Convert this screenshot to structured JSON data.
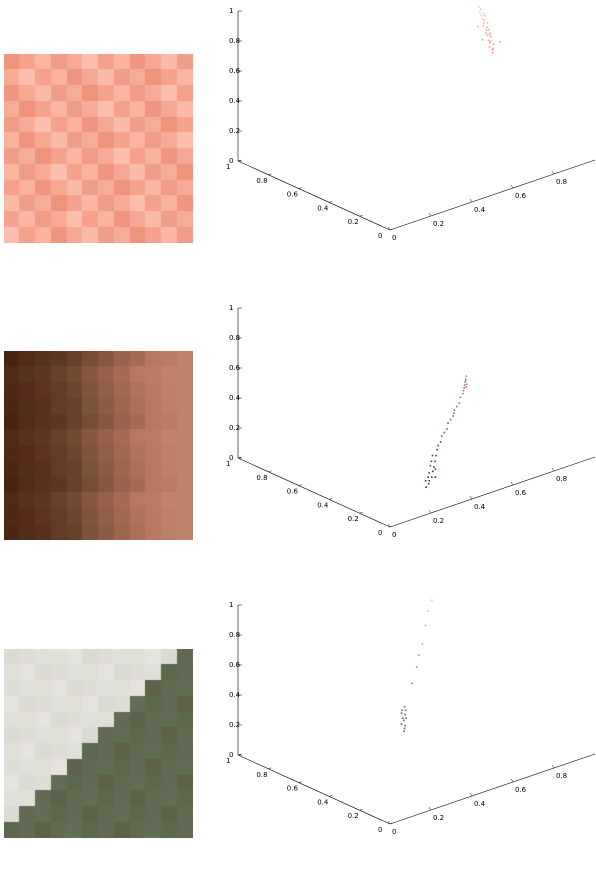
{
  "chart_data": [
    {
      "type": "scatter",
      "projection": "3d",
      "axes": {
        "x": {
          "range": [
            0,
            1
          ],
          "ticks": [
            "0",
            "0.2",
            "0.4",
            "0.6",
            "0.8"
          ]
        },
        "y": {
          "range": [
            0,
            1
          ],
          "ticks": [
            "0",
            "0.2",
            "0.4",
            "0.6",
            "0.8",
            "1"
          ]
        },
        "z": {
          "range": [
            0,
            1
          ],
          "ticks": [
            "0",
            "0.2",
            "0.4",
            "0.6",
            "0.8",
            "1"
          ]
        }
      },
      "grid": false,
      "point_color": "#e8937a",
      "points": [
        [
          0.93,
          0.58,
          0.48
        ],
        [
          0.93,
          0.58,
          0.5
        ],
        [
          0.94,
          0.59,
          0.5
        ],
        [
          0.93,
          0.6,
          0.51
        ],
        [
          0.95,
          0.6,
          0.52
        ],
        [
          0.94,
          0.61,
          0.53
        ],
        [
          0.95,
          0.62,
          0.53
        ],
        [
          0.94,
          0.62,
          0.54
        ],
        [
          0.96,
          0.63,
          0.55
        ],
        [
          0.95,
          0.64,
          0.56
        ],
        [
          0.96,
          0.64,
          0.56
        ],
        [
          0.95,
          0.65,
          0.57
        ],
        [
          0.97,
          0.66,
          0.58
        ],
        [
          0.96,
          0.66,
          0.58
        ],
        [
          0.97,
          0.67,
          0.59
        ],
        [
          0.96,
          0.68,
          0.6
        ],
        [
          0.98,
          0.68,
          0.61
        ],
        [
          0.97,
          0.69,
          0.61
        ],
        [
          0.98,
          0.7,
          0.62
        ],
        [
          0.97,
          0.7,
          0.63
        ],
        [
          0.99,
          0.71,
          0.64
        ],
        [
          0.98,
          0.72,
          0.64
        ],
        [
          0.99,
          0.72,
          0.65
        ],
        [
          0.98,
          0.73,
          0.66
        ],
        [
          0.99,
          0.74,
          0.67
        ],
        [
          0.99,
          0.75,
          0.68
        ],
        [
          0.98,
          0.6,
          0.52
        ],
        [
          0.92,
          0.63,
          0.55
        ],
        [
          0.97,
          0.65,
          0.56
        ],
        [
          0.94,
          0.69,
          0.6
        ]
      ]
    },
    {
      "type": "scatter",
      "projection": "3d",
      "axes": {
        "x": {
          "range": [
            0,
            1
          ],
          "ticks": [
            "0",
            "0.2",
            "0.4",
            "0.6",
            "0.8"
          ]
        },
        "y": {
          "range": [
            0,
            1
          ],
          "ticks": [
            "0",
            "0.2",
            "0.4",
            "0.6",
            "0.8",
            "1"
          ]
        },
        "z": {
          "range": [
            0,
            1
          ],
          "ticks": [
            "0",
            "0.2",
            "0.4",
            "0.6",
            "0.8",
            "1"
          ]
        }
      },
      "grid": false,
      "point_color": "#8a4a30",
      "points": [
        [
          0.3,
          0.15,
          0.08
        ],
        [
          0.31,
          0.16,
          0.09
        ],
        [
          0.33,
          0.17,
          0.1
        ],
        [
          0.32,
          0.18,
          0.1
        ],
        [
          0.35,
          0.19,
          0.12
        ],
        [
          0.34,
          0.2,
          0.11
        ],
        [
          0.37,
          0.21,
          0.13
        ],
        [
          0.36,
          0.22,
          0.14
        ],
        [
          0.39,
          0.23,
          0.15
        ],
        [
          0.38,
          0.24,
          0.15
        ],
        [
          0.41,
          0.25,
          0.17
        ],
        [
          0.4,
          0.26,
          0.17
        ],
        [
          0.43,
          0.27,
          0.19
        ],
        [
          0.45,
          0.29,
          0.2
        ],
        [
          0.47,
          0.3,
          0.21
        ],
        [
          0.49,
          0.32,
          0.23
        ],
        [
          0.51,
          0.33,
          0.24
        ],
        [
          0.53,
          0.34,
          0.25
        ],
        [
          0.55,
          0.36,
          0.27
        ],
        [
          0.57,
          0.37,
          0.28
        ],
        [
          0.59,
          0.38,
          0.29
        ],
        [
          0.61,
          0.4,
          0.31
        ],
        [
          0.63,
          0.41,
          0.32
        ],
        [
          0.65,
          0.42,
          0.33
        ],
        [
          0.67,
          0.44,
          0.35
        ],
        [
          0.69,
          0.45,
          0.36
        ],
        [
          0.7,
          0.46,
          0.37
        ],
        [
          0.71,
          0.47,
          0.38
        ],
        [
          0.72,
          0.48,
          0.39
        ],
        [
          0.73,
          0.49,
          0.4
        ],
        [
          0.74,
          0.5,
          0.41
        ],
        [
          0.75,
          0.51,
          0.42
        ],
        [
          0.74,
          0.5,
          0.4
        ],
        [
          0.73,
          0.48,
          0.39
        ],
        [
          0.72,
          0.47,
          0.38
        ],
        [
          0.28,
          0.14,
          0.07
        ],
        [
          0.3,
          0.17,
          0.09
        ],
        [
          0.34,
          0.16,
          0.1
        ],
        [
          0.37,
          0.2,
          0.12
        ],
        [
          0.6,
          0.39,
          0.3
        ]
      ]
    },
    {
      "type": "scatter",
      "projection": "3d",
      "axes": {
        "x": {
          "range": [
            0,
            1
          ],
          "ticks": [
            "0",
            "0.2",
            "0.4",
            "0.6",
            "0.8"
          ]
        },
        "y": {
          "range": [
            0,
            1
          ],
          "ticks": [
            "0",
            "0.2",
            "0.4",
            "0.6",
            "0.8",
            "1"
          ]
        },
        "z": {
          "range": [
            0,
            1
          ],
          "ticks": [
            "0",
            "0.2",
            "0.4",
            "0.6",
            "0.8",
            "1"
          ]
        }
      },
      "grid": false,
      "point_color": "#6b7059",
      "points": [
        [
          0.35,
          0.38,
          0.28
        ],
        [
          0.36,
          0.39,
          0.29
        ],
        [
          0.37,
          0.4,
          0.3
        ],
        [
          0.36,
          0.41,
          0.31
        ],
        [
          0.38,
          0.42,
          0.32
        ],
        [
          0.39,
          0.42,
          0.33
        ],
        [
          0.38,
          0.43,
          0.33
        ],
        [
          0.4,
          0.44,
          0.34
        ],
        [
          0.39,
          0.45,
          0.35
        ],
        [
          0.41,
          0.45,
          0.36
        ],
        [
          0.4,
          0.46,
          0.36
        ],
        [
          0.42,
          0.47,
          0.37
        ],
        [
          0.5,
          0.53,
          0.46
        ],
        [
          0.56,
          0.58,
          0.52
        ],
        [
          0.6,
          0.62,
          0.56
        ],
        [
          0.64,
          0.65,
          0.6
        ],
        [
          0.7,
          0.71,
          0.67
        ],
        [
          0.75,
          0.76,
          0.72
        ],
        [
          0.79,
          0.79,
          0.76
        ],
        [
          0.82,
          0.82,
          0.79
        ],
        [
          0.85,
          0.85,
          0.82
        ],
        [
          0.86,
          0.86,
          0.83
        ],
        [
          0.87,
          0.87,
          0.84
        ],
        [
          0.88,
          0.88,
          0.85
        ],
        [
          0.89,
          0.89,
          0.86
        ],
        [
          0.9,
          0.9,
          0.87
        ],
        [
          0.88,
          0.88,
          0.84
        ],
        [
          0.87,
          0.88,
          0.85
        ],
        [
          0.86,
          0.86,
          0.82
        ],
        [
          0.9,
          0.89,
          0.87
        ]
      ]
    }
  ]
}
